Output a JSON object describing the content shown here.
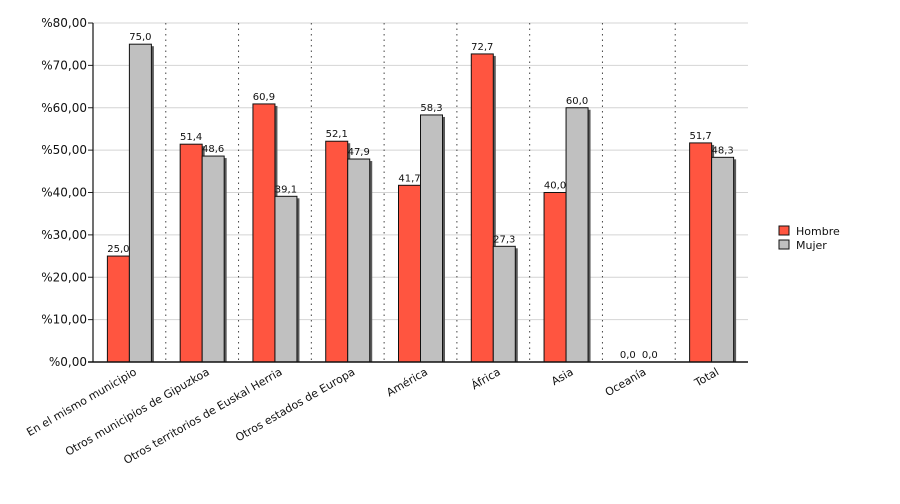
{
  "chart_data": {
    "type": "bar",
    "categories": [
      "En el mismo municipio",
      "Otros municipios de Gipuzkoa",
      "Otros territorios de Euskal Herria",
      "Otros estados de Europa",
      "América",
      "África",
      "Asia",
      "Oceanía",
      "Total"
    ],
    "series": [
      {
        "name": "Hombre",
        "color": "#ff5540",
        "values": [
          25.0,
          51.4,
          60.9,
          52.1,
          41.7,
          72.7,
          40.0,
          0.0,
          51.7
        ],
        "labels": [
          "25,0",
          "51,4",
          "60,9",
          "52,1",
          "41,7",
          "72,7",
          "40,0",
          "0,0",
          "51,7"
        ]
      },
      {
        "name": "Mujer",
        "color": "#c0c0c0",
        "values": [
          75.0,
          48.6,
          39.1,
          47.9,
          58.3,
          27.3,
          60.0,
          0.0,
          48.3
        ],
        "labels": [
          "75,0",
          "48,6",
          "39,1",
          "47,9",
          "58,3",
          "27,3",
          "60,0",
          "0,0",
          "48,3"
        ]
      }
    ],
    "ylim": [
      0,
      80
    ],
    "yticks": [
      0,
      10,
      20,
      30,
      40,
      50,
      60,
      70,
      80
    ],
    "ytick_labels": [
      "%0,00",
      "%10,00",
      "%20,00",
      "%30,00",
      "%40,00",
      "%50,00",
      "%60,00",
      "%70,00",
      "%80,00"
    ],
    "title": "",
    "xlabel": "",
    "ylabel": "",
    "grid": true,
    "legend_position": "right"
  }
}
